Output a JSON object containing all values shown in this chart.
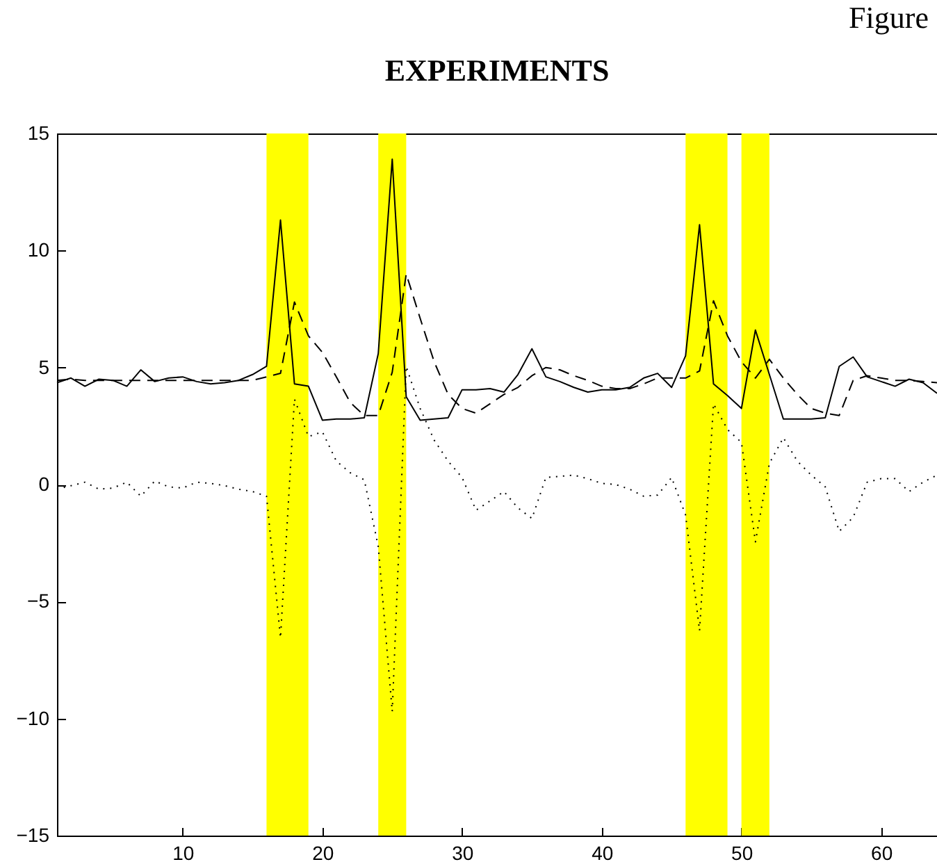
{
  "chart_data": {
    "type": "line",
    "title": "EXPERIMENTS",
    "annotations": [
      "Figure"
    ],
    "x": [
      1,
      2,
      3,
      4,
      5,
      6,
      7,
      8,
      9,
      10,
      11,
      12,
      13,
      14,
      15,
      16,
      17,
      18,
      19,
      20,
      21,
      22,
      23,
      24,
      25,
      26,
      27,
      28,
      29,
      30,
      31,
      32,
      33,
      34,
      35,
      36,
      37,
      38,
      39,
      40,
      41,
      42,
      43,
      44,
      45,
      46,
      47,
      48,
      49,
      50,
      51,
      52,
      53,
      54,
      55,
      56,
      57,
      58,
      59,
      60,
      61,
      62,
      63,
      64
    ],
    "series": [
      {
        "color": "#000000",
        "line_style": "solid",
        "values": [
          4.35,
          4.55,
          4.2,
          4.5,
          4.45,
          4.2,
          4.9,
          4.4,
          4.55,
          4.6,
          4.4,
          4.3,
          4.35,
          4.45,
          4.7,
          5.05,
          11.3,
          4.3,
          4.2,
          2.75,
          2.8,
          2.8,
          2.85,
          5.6,
          13.9,
          3.75,
          2.75,
          2.8,
          2.85,
          4.05,
          4.05,
          4.1,
          3.95,
          4.7,
          5.8,
          4.6,
          4.4,
          4.15,
          3.95,
          4.05,
          4.05,
          4.15,
          4.55,
          4.75,
          4.15,
          5.5,
          11.1,
          4.3,
          3.8,
          3.25,
          6.6,
          4.7,
          2.8,
          2.8,
          2.8,
          2.85,
          5.05,
          5.45,
          4.6,
          4.4,
          4.2,
          4.5,
          4.35,
          3.9
        ]
      },
      {
        "color": "#000000",
        "line_style": "dashed",
        "values": [
          4.45,
          4.5,
          4.45,
          4.45,
          4.45,
          4.45,
          4.45,
          4.45,
          4.45,
          4.45,
          4.45,
          4.45,
          4.45,
          4.45,
          4.45,
          4.6,
          4.75,
          7.8,
          6.35,
          5.65,
          4.6,
          3.5,
          2.95,
          2.95,
          4.8,
          9.0,
          7.1,
          5.25,
          3.85,
          3.25,
          3.05,
          3.45,
          3.85,
          4.15,
          4.65,
          5.0,
          4.9,
          4.65,
          4.45,
          4.2,
          4.1,
          4.1,
          4.3,
          4.55,
          4.55,
          4.55,
          4.85,
          7.85,
          6.35,
          5.25,
          4.55,
          5.35,
          4.55,
          3.85,
          3.25,
          3.05,
          2.95,
          4.45,
          4.65,
          4.55,
          4.45,
          4.45,
          4.4,
          4.35
        ]
      },
      {
        "color": "#000000",
        "line_style": "dotted",
        "values": [
          -0.2,
          -0.05,
          0.1,
          -0.2,
          -0.15,
          0.1,
          -0.5,
          0.15,
          -0.1,
          -0.15,
          0.1,
          0.05,
          -0.05,
          -0.2,
          -0.3,
          -0.5,
          -6.55,
          3.65,
          2.05,
          2.25,
          1.0,
          0.5,
          0.2,
          -2.65,
          -9.7,
          5.05,
          3.25,
          1.9,
          1.0,
          0.3,
          -1.1,
          -0.7,
          -0.3,
          -1.0,
          -1.45,
          0.3,
          0.35,
          0.4,
          0.25,
          0.05,
          0.0,
          -0.2,
          -0.5,
          -0.45,
          0.3,
          -1.3,
          -6.25,
          3.45,
          2.35,
          1.8,
          -2.45,
          0.9,
          2.0,
          1.0,
          0.4,
          -0.1,
          -2.0,
          -1.4,
          0.1,
          0.25,
          0.25,
          -0.3,
          0.1,
          0.4
        ]
      }
    ],
    "bands": [
      {
        "axis": "x",
        "from": 16,
        "to": 19,
        "color": "#ffff00"
      },
      {
        "axis": "x",
        "from": 24,
        "to": 26,
        "color": "#ffff00"
      },
      {
        "axis": "x",
        "from": 46,
        "to": 49,
        "color": "#ffff00"
      },
      {
        "axis": "x",
        "from": 50,
        "to": 52,
        "color": "#ffff00"
      }
    ],
    "xlim": [
      1,
      64
    ],
    "xticks": [
      10,
      20,
      30,
      40,
      50,
      60
    ],
    "ylim": [
      -15,
      15
    ],
    "yticks": [
      -15,
      -10,
      -5,
      0,
      5,
      10,
      15
    ],
    "grid": false
  }
}
